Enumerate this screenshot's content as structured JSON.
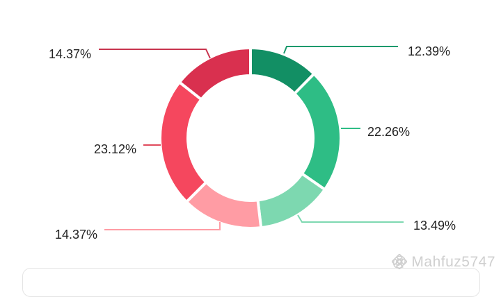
{
  "chart_data": {
    "type": "pie",
    "donut": true,
    "start_angle_deg": 0,
    "slices": [
      {
        "label": "12.39%",
        "value": 12.39,
        "color": "#128f64",
        "line_color": "#1a9a6c"
      },
      {
        "label": "22.26%",
        "value": 22.26,
        "color": "#2ebd85",
        "line_color": "#2ebd85"
      },
      {
        "label": "13.49%",
        "value": 13.49,
        "color": "#7dd8b0",
        "line_color": "#7dd8b0"
      },
      {
        "label": "14.37%",
        "value": 14.37,
        "color": "#ff9ca4",
        "line_color": "#ff9ca4"
      },
      {
        "label": "23.12%",
        "value": 23.12,
        "color": "#f5475e",
        "line_color": "#e04a5c"
      },
      {
        "label": "14.37%",
        "value": 14.37,
        "color": "#d9304f",
        "line_color": "#c8344e"
      }
    ]
  },
  "watermark": {
    "text": "@ Mahfuz5747",
    "icon": "binance-logo-icon"
  }
}
